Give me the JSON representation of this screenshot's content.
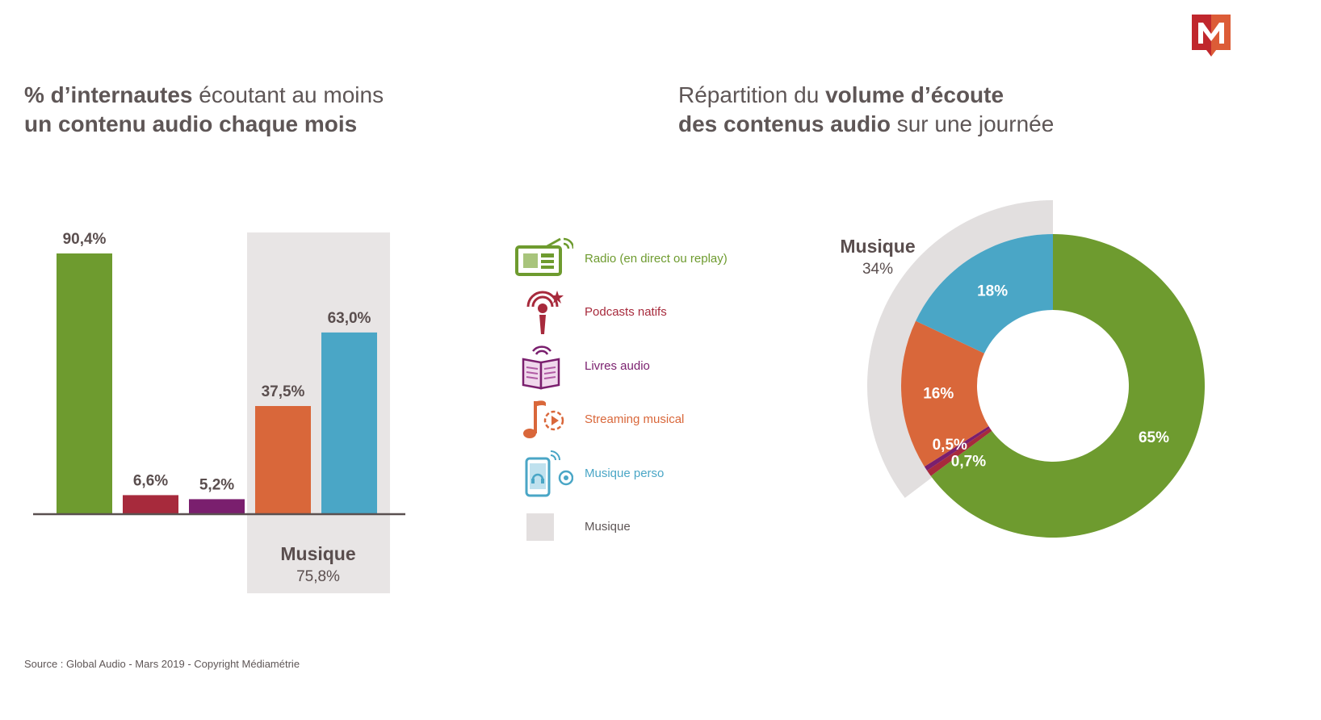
{
  "brand": {
    "logo": "Médiamétrie M logo",
    "accent": "#c0272d"
  },
  "left_title": {
    "bold1": "% d’internautes",
    "normal1": " écoutant au moins",
    "bold2": "un contenu audio chaque mois"
  },
  "right_title": {
    "normal1": "Répartition du ",
    "bold1": "volume d’écoute",
    "bold2": "des contenus audio",
    "normal2": " sur une journée"
  },
  "legend": [
    {
      "label": "Radio (en direct ou replay)",
      "color": "#6e9b2f",
      "icon": "radio-icon"
    },
    {
      "label": "Podcasts natifs",
      "color": "#a72a3c",
      "icon": "podcast-icon"
    },
    {
      "label": "Livres audio",
      "color": "#7a1f6e",
      "icon": "audiobook-icon"
    },
    {
      "label": "Streaming musical",
      "color": "#d9673a",
      "icon": "music-streaming-icon"
    },
    {
      "label": "Musique perso",
      "color": "#4aa6c6",
      "icon": "personal-music-icon"
    },
    {
      "label": "Musique",
      "color": "#e3dfdf",
      "icon": "grey-square-icon"
    }
  ],
  "source": "Source : Global Audio - Mars 2019 - Copyright Médiamétrie",
  "chart_data": [
    {
      "type": "bar",
      "title": "% d’internautes écoutant au moins un contenu audio chaque mois",
      "categories": [
        "Radio (en direct ou replay)",
        "Podcasts natifs",
        "Livres audio",
        "Streaming musical",
        "Musique perso"
      ],
      "values": [
        90.4,
        6.6,
        5.2,
        37.5,
        63.0
      ],
      "labels": [
        "90,4%",
        "6,6%",
        "5,2%",
        "37,5%",
        "63,0%"
      ],
      "colors": [
        "#6e9b2f",
        "#a72a3c",
        "#7a1f6e",
        "#d9673a",
        "#4aa6c6"
      ],
      "ylim": [
        0,
        100
      ],
      "group": {
        "name": "Musique",
        "value_label": "75,8%",
        "members": [
          "Streaming musical",
          "Musique perso"
        ]
      }
    },
    {
      "type": "pie",
      "title": "Répartition du volume d’écoute des contenus audio sur une journée",
      "categories": [
        "Radio (en direct ou replay)",
        "Podcasts natifs",
        "Livres audio",
        "Streaming musical",
        "Musique perso"
      ],
      "values": [
        65,
        0.7,
        0.5,
        16,
        18
      ],
      "labels": [
        "65%",
        "0,7%",
        "0,5%",
        "16%",
        "18%"
      ],
      "colors": [
        "#6e9b2f",
        "#a72a3c",
        "#7a1f6e",
        "#d9673a",
        "#4aa6c6"
      ],
      "group": {
        "name": "Musique",
        "value_label": "34%"
      }
    }
  ]
}
